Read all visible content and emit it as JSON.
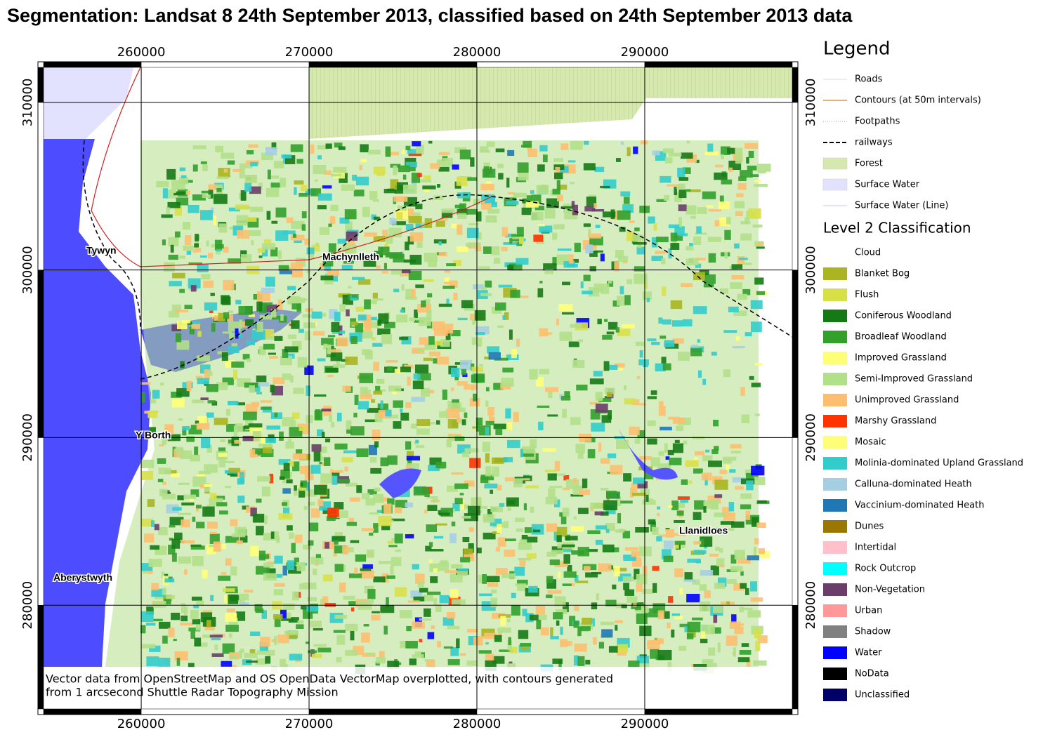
{
  "title": "Segmentation: Landsat 8 24th September 2013, classified based on 24th September 2013 data",
  "map": {
    "xlim": [
      254180,
      298790
    ],
    "ylim": [
      273810,
      312090
    ],
    "xticks": [
      260000,
      270000,
      280000,
      290000
    ],
    "yticks": [
      280000,
      290000,
      300000,
      310000
    ],
    "places": [
      "Tywyn",
      "Machynlleth",
      "Y Borth",
      "Aberystwyth",
      "Llanidloes"
    ],
    "credit": [
      "Vector data from OpenStreetMap and OS OpenData VectorMap overplotted, with contours generated",
      "from 1 arcsecond Shuttle Radar Topography Mission"
    ]
  },
  "legend": {
    "title": "Legend",
    "items": [
      {
        "label": "Roads",
        "symbol": "line",
        "color": "#d8d8d8"
      },
      {
        "label": "Contours (at 50m intervals)",
        "symbol": "line",
        "color": "#c86400"
      },
      {
        "label": "Footpaths",
        "symbol": "dotted",
        "color": "#a0a0c0"
      },
      {
        "label": "railways",
        "symbol": "dashed",
        "color": "#000000"
      },
      {
        "label": "Forest",
        "symbol": "fill",
        "color": "#d6e8b0"
      },
      {
        "label": "Surface Water",
        "symbol": "fill",
        "color": "#e2e2ff"
      },
      {
        "label": "Surface Water (Line)",
        "symbol": "line",
        "color": "#c0c8f0"
      }
    ],
    "classification_title": "Level 2 Classification",
    "classes": [
      {
        "label": "Cloud",
        "color": "#ffffff"
      },
      {
        "label": "Blanket Bog",
        "color": "#aab521"
      },
      {
        "label": "Flush",
        "color": "#d8e048"
      },
      {
        "label": "Coniferous Woodland",
        "color": "#157a15"
      },
      {
        "label": "Broadleaf Woodland",
        "color": "#33a02c"
      },
      {
        "label": "Improved Grassland",
        "color": "#ffff77"
      },
      {
        "label": "Semi-Improved Grassland",
        "color": "#b2df8a"
      },
      {
        "label": "Unimproved Grassland",
        "color": "#fdbf6f"
      },
      {
        "label": "Marshy Grassland",
        "color": "#ff3300"
      },
      {
        "label": "Mosaic",
        "color": "#ffff77"
      },
      {
        "label": "Molinia-dominated Upland Grassland",
        "color": "#33cccc"
      },
      {
        "label": "Calluna-dominated Heath",
        "color": "#a6cee3"
      },
      {
        "label": "Vaccinium-dominated Heath",
        "color": "#1f78b4"
      },
      {
        "label": "Dunes",
        "color": "#997700"
      },
      {
        "label": "Intertidal",
        "color": "#ffc0cb"
      },
      {
        "label": "Rock Outcrop",
        "color": "#00ffff"
      },
      {
        "label": "Non-Vegetation",
        "color": "#6a3d6a"
      },
      {
        "label": "Urban",
        "color": "#ff9999"
      },
      {
        "label": "Shadow",
        "color": "#808080"
      },
      {
        "label": "Water",
        "color": "#0000ff"
      },
      {
        "label": "NoData",
        "color": "#000000"
      },
      {
        "label": "Unclassified",
        "color": "#000066"
      }
    ]
  }
}
